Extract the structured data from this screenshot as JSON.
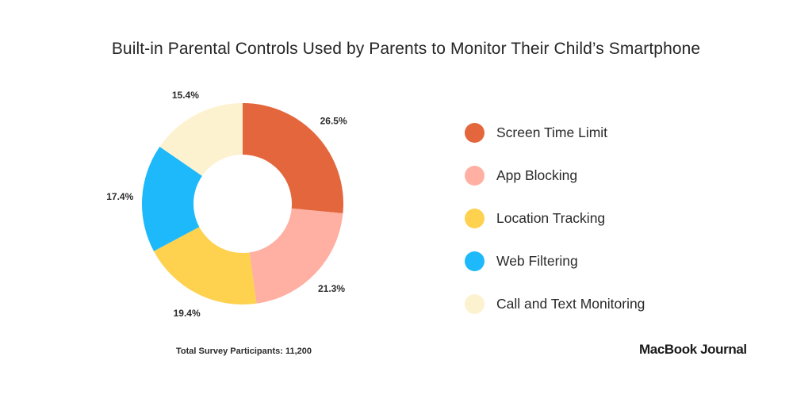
{
  "chart_data": {
    "type": "pie",
    "title": "Built-in Parental Controls Used by Parents to Monitor Their Child’s Smartphone",
    "slices": [
      {
        "label": "Screen Time Limit",
        "value": 26.5,
        "display": "26.5%",
        "color": "#E4663C"
      },
      {
        "label": "App Blocking",
        "value": 21.3,
        "display": "21.3%",
        "color": "#FFB0A3"
      },
      {
        "label": "Location Tracking",
        "value": 19.4,
        "display": "19.4%",
        "color": "#FED14E"
      },
      {
        "label": "Web Filtering",
        "value": 17.4,
        "display": "17.4%",
        "color": "#1DB9FA"
      },
      {
        "label": "Call and Text Monitoring",
        "value": 15.4,
        "display": "15.4%",
        "color": "#FDF2CF"
      }
    ],
    "donut": true,
    "legend_position": "right",
    "footnote": "Total Survey Participants: 11,200"
  },
  "brand": "MacBook Journal"
}
